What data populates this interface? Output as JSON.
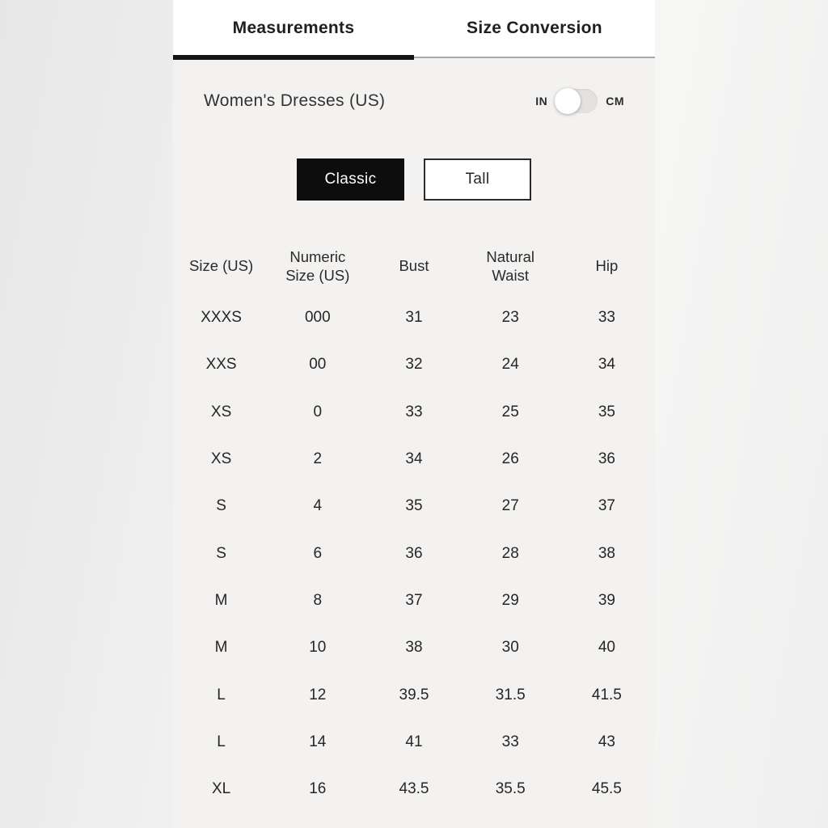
{
  "tabs": [
    {
      "label": "Measurements",
      "active": true
    },
    {
      "label": "Size Conversion",
      "active": false
    }
  ],
  "panel": {
    "title": "Women's Dresses (US)",
    "unit_toggle": {
      "left": "IN",
      "right": "CM",
      "selected": "IN"
    }
  },
  "fit_options": [
    {
      "label": "Classic",
      "selected": true
    },
    {
      "label": "Tall",
      "selected": false
    }
  ],
  "size_table": {
    "columns": [
      "Size (US)",
      "Numeric Size (US)",
      "Bust",
      "Natural Waist",
      "Hip"
    ],
    "rows": [
      [
        "XXXS",
        "000",
        "31",
        "23",
        "33"
      ],
      [
        "XXS",
        "00",
        "32",
        "24",
        "34"
      ],
      [
        "XS",
        "0",
        "33",
        "25",
        "35"
      ],
      [
        "XS",
        "2",
        "34",
        "26",
        "36"
      ],
      [
        "S",
        "4",
        "35",
        "27",
        "37"
      ],
      [
        "S",
        "6",
        "36",
        "28",
        "38"
      ],
      [
        "M",
        "8",
        "37",
        "29",
        "39"
      ],
      [
        "M",
        "10",
        "38",
        "30",
        "40"
      ],
      [
        "L",
        "12",
        "39.5",
        "31.5",
        "41.5"
      ],
      [
        "L",
        "14",
        "41",
        "33",
        "43"
      ],
      [
        "XL",
        "16",
        "43.5",
        "35.5",
        "45.5"
      ]
    ]
  },
  "colors": {
    "accent_black": "#0d0d0d",
    "tabbar_bg": "#ffffff",
    "panel_bg": "#f3f2f1",
    "divider_gray": "#a9a9a9",
    "text": "#262626",
    "toggle_track": "#e3e2e1"
  }
}
